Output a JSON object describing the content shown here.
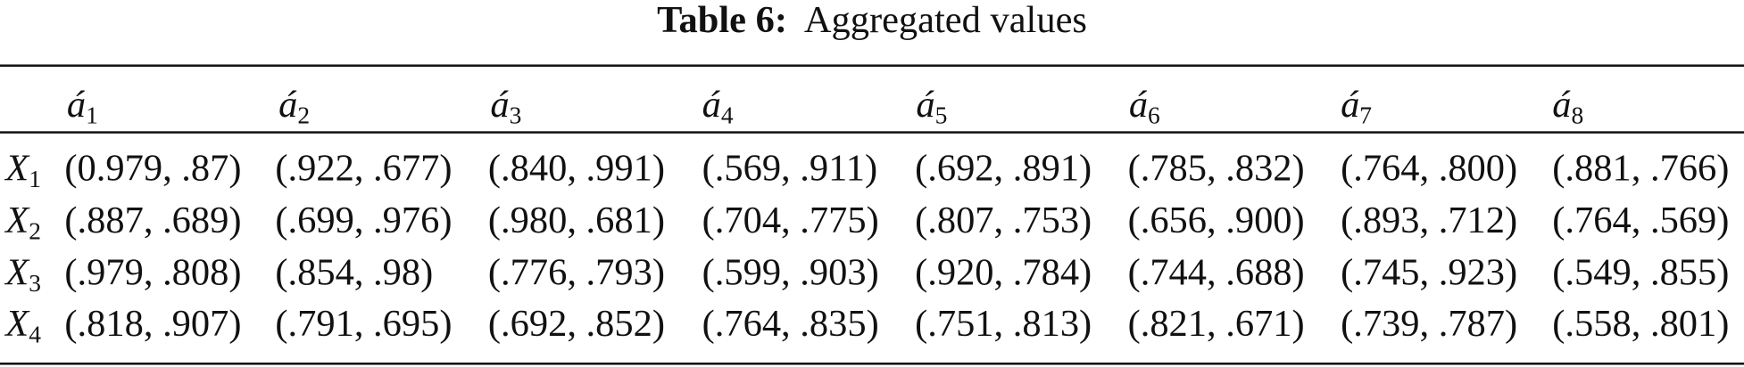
{
  "table": {
    "title_label": "Table 6:",
    "title": "Aggregated values",
    "headers": [
      {
        "base": "á",
        "sub": "1"
      },
      {
        "base": "á",
        "sub": "2"
      },
      {
        "base": "á",
        "sub": "3"
      },
      {
        "base": "á",
        "sub": "4"
      },
      {
        "base": "á",
        "sub": "5"
      },
      {
        "base": "á",
        "sub": "6"
      },
      {
        "base": "á",
        "sub": "7"
      },
      {
        "base": "á",
        "sub": "8"
      }
    ],
    "row_labels": [
      {
        "base": "X",
        "sub": "1"
      },
      {
        "base": "X",
        "sub": "2"
      },
      {
        "base": "X",
        "sub": "3"
      },
      {
        "base": "X",
        "sub": "4"
      }
    ],
    "rows": [
      [
        "(0.979, .87)",
        "(.922, .677)",
        "(.840, .991)",
        "(.569, .911)",
        "(.692, .891)",
        "(.785, .832)",
        "(.764, .800)",
        "(.881, .766)"
      ],
      [
        "(.887, .689)",
        "(.699, .976)",
        "(.980, .681)",
        "(.704, .775)",
        "(.807, .753)",
        "(.656, .900)",
        "(.893, .712)",
        "(.764, .569)"
      ],
      [
        "(.979, .808)",
        "(.854, .98)",
        "(.776, .793)",
        "(.599, .903)",
        "(.920, .784)",
        "(.744, .688)",
        "(.745, .923)",
        "(.549, .855)"
      ],
      [
        "(.818, .907)",
        "(.791, .695)",
        "(.692, .852)",
        "(.764, .835)",
        "(.751, .813)",
        "(.821, .671)",
        "(.739, .787)",
        "(.558, .801)"
      ]
    ]
  }
}
